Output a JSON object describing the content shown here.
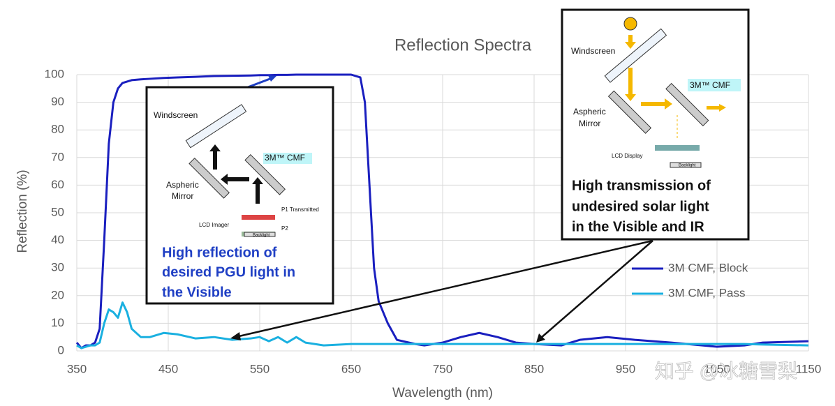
{
  "chart_data": {
    "type": "line",
    "title": "Reflection Spectra",
    "xlabel": "Wavelength (nm)",
    "ylabel": "Reflection (%)",
    "x": [
      350,
      355,
      360,
      365,
      370,
      375,
      380,
      385,
      390,
      395,
      400,
      405,
      410,
      420,
      430,
      445,
      460,
      480,
      500,
      520,
      540,
      550,
      560,
      570,
      580,
      590,
      600,
      620,
      650,
      660,
      665,
      670,
      675,
      680,
      690,
      700,
      720,
      730,
      750,
      770,
      790,
      810,
      830,
      850,
      880,
      900,
      930,
      960,
      1000,
      1050,
      1080,
      1100,
      1150
    ],
    "series": [
      {
        "name": "3M CMF, Block",
        "color": "#1a1fbf",
        "values": [
          3,
          1,
          2,
          2,
          3,
          8,
          40,
          75,
          90,
          95,
          97,
          97.5,
          98,
          98.3,
          98.5,
          98.8,
          99,
          99.2,
          99.5,
          99.6,
          99.7,
          99.8,
          99.8,
          99.9,
          99.9,
          100,
          100,
          100,
          100,
          99,
          90,
          60,
          30,
          18,
          10,
          4,
          2.5,
          2,
          3,
          5,
          6.5,
          5,
          3,
          2.5,
          2,
          4,
          5,
          4,
          3,
          1.5,
          2,
          3,
          3.5
        ]
      },
      {
        "name": "3M CMF, Pass",
        "color": "#1ab0e0",
        "values": [
          2,
          1,
          1.5,
          2,
          2,
          3,
          10,
          15,
          14,
          12,
          17.5,
          14,
          8,
          5,
          5,
          6.5,
          6,
          4.5,
          5,
          4,
          4.5,
          5,
          3.5,
          5,
          3,
          5,
          3,
          2,
          2.5,
          2.5,
          2.5,
          2.5,
          2.5,
          2.5,
          2.5,
          2.5,
          2.5,
          2.5,
          2.5,
          2.5,
          2.5,
          2.5,
          2.5,
          2.5,
          2.5,
          2.5,
          2.5,
          2.5,
          2.5,
          2.5,
          2.5,
          2.3,
          2
        ]
      }
    ],
    "xlim": [
      350,
      1150
    ],
    "xticks": [
      350,
      450,
      550,
      650,
      750,
      850,
      950,
      1050,
      1150
    ],
    "ylim": [
      0,
      100
    ],
    "yticks": [
      0,
      10,
      20,
      30,
      40,
      50,
      60,
      70,
      80,
      90,
      100
    ],
    "grid": true,
    "legend": "lower right",
    "insets": [
      {
        "labels": [
          "Windscreen",
          "3M™ CMF",
          "Aspheric",
          "Mirror",
          "P1 Transmitted",
          "LCD Imager",
          "P2",
          "Backlight"
        ],
        "caption": [
          "High reflection of",
          "desired PGU light in",
          "the Visible"
        ]
      },
      {
        "labels": [
          "Windscreen",
          "3M™ CMF",
          "Aspheric",
          "Mirror",
          "LCD Display",
          "Backlight"
        ],
        "caption": [
          "High transmission of",
          "undesired solar light",
          "in the Visible and IR"
        ]
      }
    ],
    "watermark": "知乎 @冰糖雪梨"
  }
}
